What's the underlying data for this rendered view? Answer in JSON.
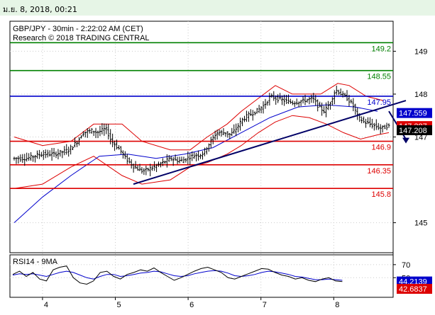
{
  "header": {
    "datetime": "ม.ย. 8, 2018, 00:21"
  },
  "chart_data": {
    "type": "line",
    "title": "GBP/JPY - 30min - 2:22:02 AM (CET)",
    "subtitle": "Research © 2018 TRADING CENTRAL",
    "y_axis_ticks": [
      "149",
      "148",
      "147",
      "145"
    ],
    "x_axis_ticks": [
      "4",
      "5",
      "6",
      "7",
      "8"
    ],
    "ylim": [
      144.3,
      149.7
    ],
    "colors": {
      "green": "#008000",
      "blue": "#0000cc",
      "red": "#dd0000",
      "price": "#000000",
      "trend": "#000066"
    },
    "price_bar_count": 180,
    "levels": [
      {
        "value": 149.2,
        "label": "149.2",
        "color": "#008000"
      },
      {
        "value": 148.55,
        "label": "148.55",
        "color": "#008000"
      },
      {
        "value": 147.95,
        "label": "147.95",
        "color": "#0000cc"
      },
      {
        "value": 146.9,
        "label": "146.9",
        "color": "#dd0000"
      },
      {
        "value": 146.35,
        "label": "146.35",
        "color": "#dd0000"
      },
      {
        "value": 145.8,
        "label": "145.8",
        "color": "#dd0000"
      }
    ],
    "price_badges": [
      {
        "value": 147.559,
        "label": "147.559",
        "bg": "#0000cc",
        "fg": "#ffffff"
      },
      {
        "value": 147.287,
        "label": "147.287",
        "bg": "#dd0000",
        "fg": "#ffffff"
      },
      {
        "value": 147.208,
        "label": "147.208",
        "bg": "#000000",
        "fg": "#ffffff"
      }
    ],
    "price_path": [
      [
        0,
        146.5
      ],
      [
        5,
        146.5
      ],
      [
        10,
        146.6
      ],
      [
        15,
        146.6
      ],
      [
        20,
        146.7
      ],
      [
        23,
        146.9
      ],
      [
        25,
        147.1
      ],
      [
        28,
        147.15
      ],
      [
        30,
        147.1
      ],
      [
        33,
        147.2
      ],
      [
        35,
        146.9
      ],
      [
        38,
        146.7
      ],
      [
        40,
        146.5
      ],
      [
        43,
        146.3
      ],
      [
        46,
        146.2
      ],
      [
        50,
        146.3
      ],
      [
        53,
        146.4
      ],
      [
        56,
        146.5
      ],
      [
        58,
        146.45
      ],
      [
        60,
        146.45
      ],
      [
        63,
        146.55
      ],
      [
        67,
        146.6
      ],
      [
        70,
        146.9
      ],
      [
        72,
        147.1
      ],
      [
        75,
        147.1
      ],
      [
        77,
        147.05
      ],
      [
        79,
        147.2
      ],
      [
        81,
        147.4
      ],
      [
        83,
        147.5
      ],
      [
        86,
        147.6
      ],
      [
        89,
        147.75
      ],
      [
        91,
        147.95
      ],
      [
        93,
        147.9
      ],
      [
        96,
        147.85
      ],
      [
        99,
        147.8
      ],
      [
        103,
        147.85
      ],
      [
        106,
        147.9
      ],
      [
        108,
        147.7
      ],
      [
        110,
        147.6
      ],
      [
        112,
        147.8
      ],
      [
        114,
        148.1
      ],
      [
        116,
        148.0
      ],
      [
        118,
        147.9
      ],
      [
        120,
        147.75
      ],
      [
        122,
        147.45
      ],
      [
        124,
        147.35
      ],
      [
        126,
        147.3
      ],
      [
        128,
        147.25
      ],
      [
        130,
        147.2
      ],
      [
        132,
        147.25
      ]
    ],
    "ma_path": [
      [
        0,
        145.0
      ],
      [
        10,
        145.6
      ],
      [
        20,
        146.1
      ],
      [
        30,
        146.55
      ],
      [
        40,
        146.6
      ],
      [
        50,
        146.5
      ],
      [
        60,
        146.6
      ],
      [
        70,
        146.75
      ],
      [
        80,
        147.1
      ],
      [
        90,
        147.45
      ],
      [
        100,
        147.7
      ],
      [
        110,
        147.75
      ],
      [
        120,
        147.7
      ],
      [
        128,
        147.6
      ]
    ],
    "upper_band": [
      [
        0,
        147.0
      ],
      [
        10,
        146.8
      ],
      [
        20,
        146.9
      ],
      [
        28,
        147.3
      ],
      [
        38,
        147.3
      ],
      [
        45,
        146.9
      ],
      [
        55,
        146.7
      ],
      [
        62,
        146.7
      ],
      [
        68,
        147.0
      ],
      [
        75,
        147.3
      ],
      [
        80,
        147.6
      ],
      [
        86,
        147.9
      ],
      [
        92,
        148.2
      ],
      [
        98,
        148.0
      ],
      [
        104,
        148.0
      ],
      [
        108,
        148.0
      ],
      [
        114,
        148.25
      ],
      [
        118,
        148.2
      ],
      [
        124,
        147.95
      ],
      [
        130,
        147.85
      ]
    ],
    "lower_band": [
      [
        0,
        145.8
      ],
      [
        10,
        145.9
      ],
      [
        20,
        146.3
      ],
      [
        28,
        146.55
      ],
      [
        38,
        146.1
      ],
      [
        45,
        145.9
      ],
      [
        55,
        146.0
      ],
      [
        62,
        146.3
      ],
      [
        68,
        146.4
      ],
      [
        75,
        146.6
      ],
      [
        80,
        146.8
      ],
      [
        86,
        147.1
      ],
      [
        92,
        147.35
      ],
      [
        98,
        147.5
      ],
      [
        104,
        147.45
      ],
      [
        110,
        147.3
      ],
      [
        116,
        147.1
      ],
      [
        122,
        146.95
      ],
      [
        128,
        147.05
      ],
      [
        132,
        147.1
      ]
    ],
    "trend_line": [
      [
        42,
        145.9
      ],
      [
        138,
        147.85
      ]
    ],
    "forecast_arrow": [
      [
        132,
        147.6
      ],
      [
        138,
        146.85
      ]
    ],
    "rsi": {
      "label": "RSI14 - 9MA",
      "ticks": [
        "70",
        "50"
      ],
      "badges": [
        {
          "value": "44.2139",
          "bg": "#0000cc",
          "fg": "#ffffff"
        },
        {
          "value": "42.6837",
          "bg": "#dd0000",
          "fg": "#ffffff"
        }
      ],
      "ylim": [
        20,
        85
      ],
      "rsi_values": [
        55,
        60,
        52,
        58,
        48,
        45,
        62,
        66,
        68,
        50,
        42,
        40,
        45,
        58,
        60,
        52,
        48,
        55,
        58,
        62,
        60,
        65,
        58,
        52,
        46,
        50,
        55,
        60,
        64,
        66,
        62,
        58,
        50,
        48,
        52,
        56,
        60,
        64,
        63,
        58,
        54,
        52,
        48,
        50,
        46,
        44,
        48,
        50,
        45,
        44
      ],
      "ma_values": [
        54,
        56,
        55,
        56,
        54,
        52,
        55,
        58,
        60,
        58,
        54,
        50,
        48,
        52,
        55,
        55,
        52,
        53,
        55,
        57,
        58,
        60,
        59,
        56,
        53,
        52,
        53,
        56,
        58,
        60,
        61,
        60,
        57,
        53,
        52,
        53,
        55,
        58,
        60,
        59,
        57,
        55,
        52,
        51,
        49,
        47,
        47,
        48,
        47,
        46
      ]
    }
  }
}
